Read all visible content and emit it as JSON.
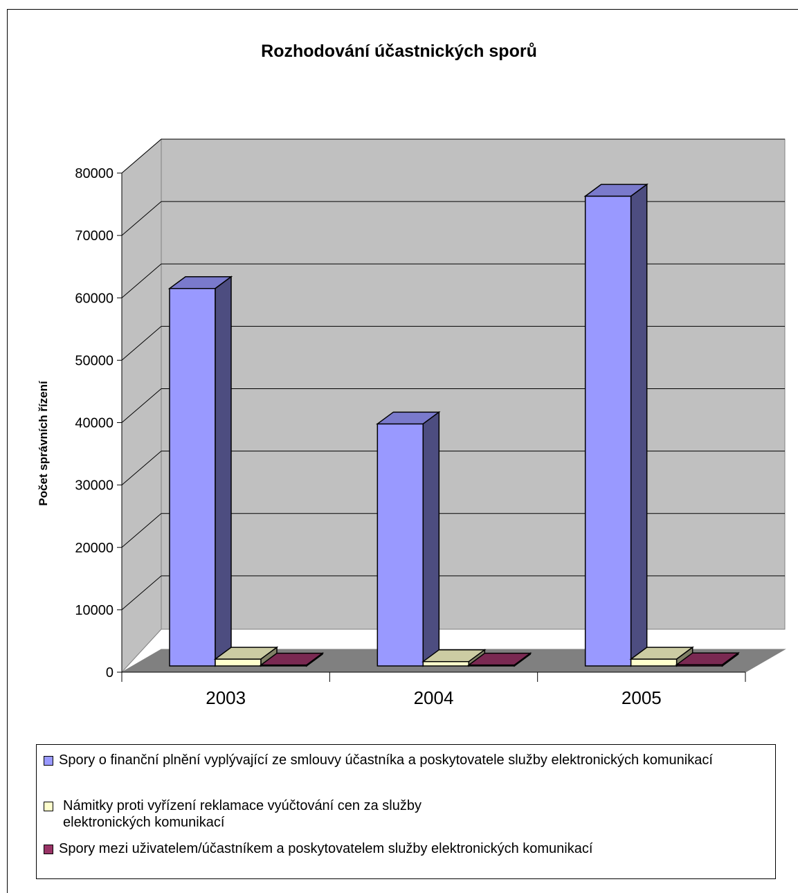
{
  "chart_data": {
    "type": "bar",
    "title": "Rozhodování účastnických sporů",
    "xlabel": "",
    "ylabel": "Počet správních řízení",
    "ylim": [
      0,
      80000
    ],
    "yticks": [
      0,
      10000,
      20000,
      30000,
      40000,
      50000,
      60000,
      70000,
      80000
    ],
    "categories": [
      "2003",
      "2004",
      "2005"
    ],
    "grid": true,
    "legend_position": "bottom",
    "series": [
      {
        "name": "Spory o finanční plnění vyplývající ze smlouvy účastníka a poskytovatele služby elektronických komunikací",
        "color": "#9999ff",
        "values": [
          60500,
          38800,
          75300
        ]
      },
      {
        "name": "Námitky proti vyřízení reklamace vyúčtování cen za služby elektronických komunikací",
        "color": "#ffffcc",
        "values": [
          1100,
          700,
          1100
        ]
      },
      {
        "name": "Spory mezi uživatelem/účastníkem a poskytovatelem služby elektronických komunikací",
        "color": "#993366",
        "values": [
          150,
          150,
          200
        ]
      }
    ]
  }
}
